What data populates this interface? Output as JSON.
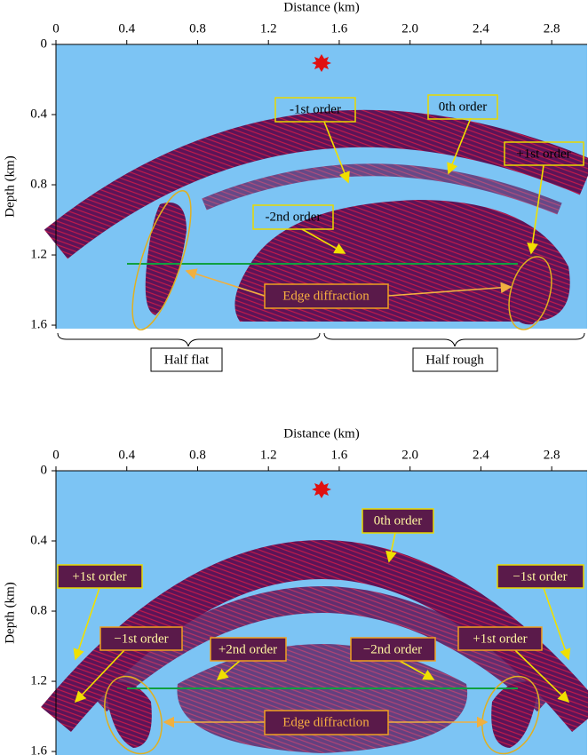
{
  "panels": [
    {
      "x_label": "Distance (km)",
      "y_label": "Depth (km)",
      "xlim": [
        0,
        3
      ],
      "ylim": [
        0,
        1.62
      ],
      "xticks": [
        0,
        0.4,
        0.8,
        1.2,
        1.6,
        {
          "value": 2,
          "label": "2.0"
        },
        2.4,
        2.8
      ],
      "yticks": [
        0,
        0.4,
        0.8,
        1.2,
        1.6
      ],
      "annotations": [
        "-1st order",
        "0th order",
        "+1st order",
        "-2nd order",
        "Edge diffraction"
      ],
      "regions": [
        "Half flat",
        "Half rough"
      ]
    },
    {
      "x_label": "Distance (km)",
      "y_label": "Depth (km)",
      "xlim": [
        0,
        3
      ],
      "ylim": [
        0,
        1.62
      ],
      "xticks": [
        0,
        0.4,
        0.8,
        1.2,
        1.6,
        {
          "value": 2,
          "label": "2.0"
        },
        2.4,
        2.8
      ],
      "yticks": [
        0,
        0.4,
        0.8,
        1.2,
        1.6
      ],
      "annotations": [
        "0th order",
        "+1st order",
        "−1st order",
        "−1st order",
        "+2nd order",
        "−2nd order",
        "+1st order",
        "Edge diffraction"
      ]
    }
  ]
}
